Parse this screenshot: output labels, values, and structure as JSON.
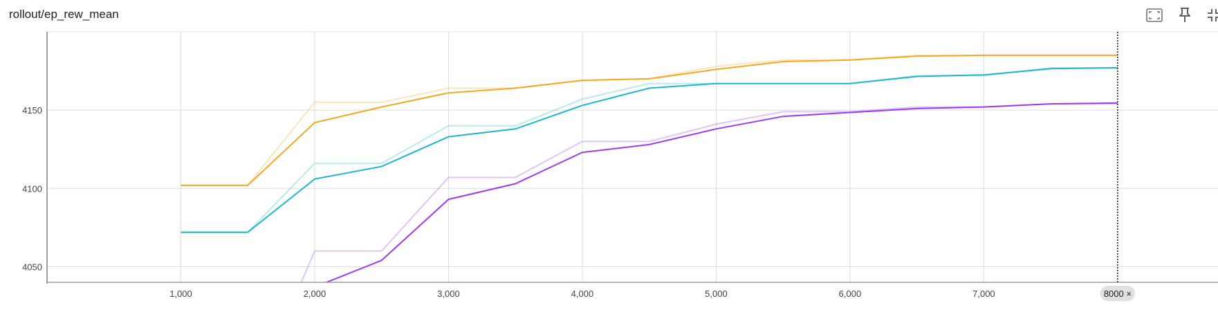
{
  "header": {
    "title": "rollout/ep_rew_mean"
  },
  "toolbar": {
    "fit_icon": "fit-domain-icon",
    "pin_icon": "pin-icon",
    "collapse_icon": "collapse-icon"
  },
  "chart_data": {
    "type": "line",
    "title": "rollout/ep_rew_mean",
    "xlabel": "",
    "ylabel": "",
    "xlim": [
      0,
      8750
    ],
    "ylim": [
      4040,
      4200
    ],
    "x_ticks": [
      1000,
      2000,
      3000,
      4000,
      5000,
      6000,
      7000
    ],
    "x_tick_labels": [
      "1,000",
      "2,000",
      "3,000",
      "4,000",
      "5,000",
      "6,000",
      "7,000"
    ],
    "y_ticks": [
      4050,
      4100,
      4150
    ],
    "y_tick_labels": [
      "4050",
      "4100",
      "4150"
    ],
    "grid": true,
    "hover_x": 8000,
    "hover_label": "8000 ×",
    "series": [
      {
        "color": "#f5a623",
        "x": [
          1000,
          1500,
          2000,
          2500,
          3000,
          3500,
          4000,
          4500,
          5000,
          5500,
          6000,
          6500,
          7000,
          7500,
          8000
        ],
        "raw": [
          4102,
          4102,
          4155,
          4155,
          4164,
          4164,
          4169,
          4170,
          4178,
          4182,
          4182,
          4185,
          4185,
          4185,
          4185
        ],
        "smoothed": [
          4102,
          4102,
          4142,
          4152,
          4161,
          4164,
          4169,
          4170,
          4176,
          4181,
          4182,
          4184.5,
          4185,
          4185,
          4185
        ]
      },
      {
        "color": "#1fb6c9",
        "x": [
          1000,
          1500,
          2000,
          2500,
          3000,
          3500,
          4000,
          4500,
          5000,
          5500,
          6000,
          6500,
          7000,
          7500,
          8000
        ],
        "raw": [
          4072,
          4072,
          4116,
          4116,
          4140,
          4140,
          4157,
          4167,
          4167,
          4167,
          4167,
          4172,
          4172,
          4177,
          4177
        ],
        "smoothed": [
          4072,
          4072,
          4106,
          4114,
          4133,
          4138,
          4153,
          4164,
          4167,
          4167,
          4167,
          4171.5,
          4172.5,
          4176.5,
          4177
        ]
      },
      {
        "color": "#9b3cf0",
        "x": [
          1000,
          1500,
          2000,
          2500,
          3000,
          3500,
          4000,
          4500,
          5000,
          5500,
          6000,
          6500,
          7000,
          7500,
          8000
        ],
        "raw": [
          null,
          null,
          4060,
          4060,
          4107,
          4107,
          4130,
          4130,
          4141,
          4149,
          4149,
          4152,
          4152,
          4154,
          4154
        ],
        "smoothed": [
          null,
          null,
          4037,
          4054,
          4093,
          4103,
          4123,
          4128,
          4138,
          4146,
          4148.5,
          4151,
          4152,
          4154,
          4154.5
        ],
        "raw_entry": [
          1900,
          4040
        ],
        "smoothed_entry": [
          2080,
          4040
        ]
      }
    ]
  }
}
